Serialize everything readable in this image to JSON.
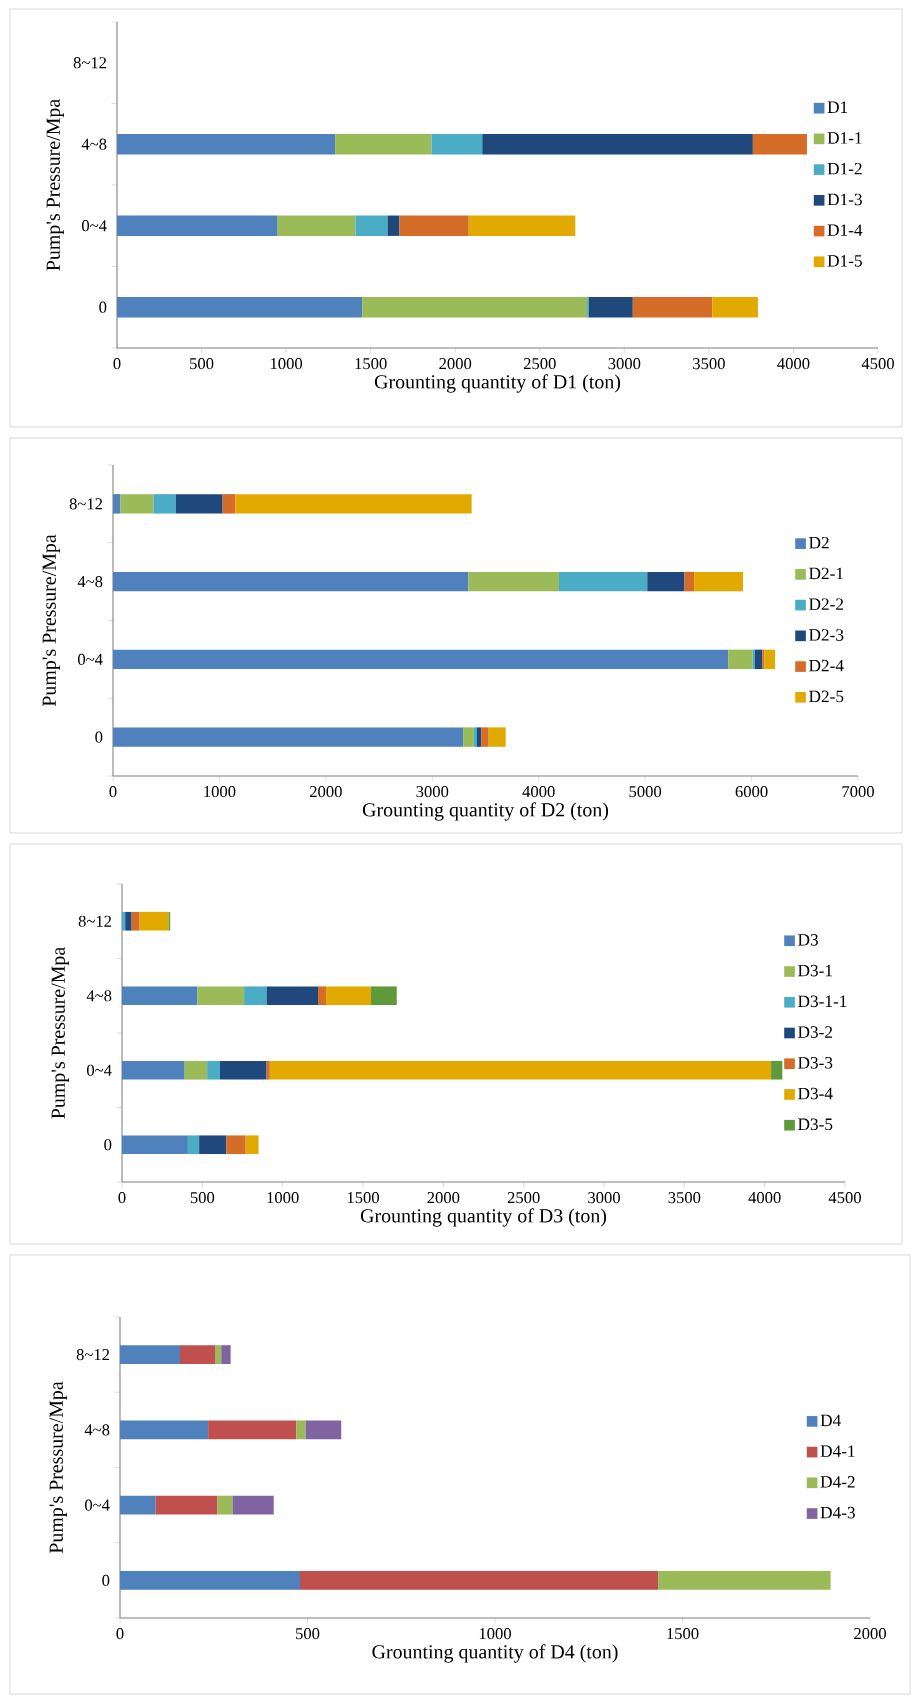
{
  "chart_data": [
    {
      "type": "bar",
      "orientation": "horizontal",
      "stacked": true,
      "xlabel": "Grounting quantity of D1 (ton)",
      "ylabel": "Pump's Pressure/Mpa",
      "categories": [
        "8~12",
        "4~8",
        "0~4",
        "0"
      ],
      "xlim": [
        0,
        4500
      ],
      "xticks": [
        0,
        500,
        1000,
        1500,
        2000,
        2500,
        3000,
        3500,
        4000,
        4500
      ],
      "legend": "right",
      "grid": false,
      "series": [
        {
          "name": "D1",
          "color": "#4f81bd",
          "values": [
            null,
            1290,
            950,
            1450
          ]
        },
        {
          "name": "D1-1",
          "color": "#9bbb59",
          "values": [
            null,
            570,
            460,
            1330
          ]
        },
        {
          "name": "D1-2",
          "color": "#4bacc6",
          "values": [
            null,
            300,
            190,
            10
          ]
        },
        {
          "name": "D1-3",
          "color": "#1f497d",
          "values": [
            null,
            1600,
            70,
            260
          ]
        },
        {
          "name": "D1-4",
          "color": "#d56d28",
          "values": [
            null,
            320,
            410,
            470
          ]
        },
        {
          "name": "D1-5",
          "color": "#e2aa00",
          "values": [
            null,
            null,
            630,
            270
          ]
        }
      ]
    },
    {
      "type": "bar",
      "orientation": "horizontal",
      "stacked": true,
      "xlabel": "Grounting quantity of D2 (ton)",
      "ylabel": "Pump's Pressure/Mpa",
      "categories": [
        "8~12",
        "4~8",
        "0~4",
        "0"
      ],
      "xlim": [
        0,
        7000
      ],
      "xticks": [
        0,
        1000,
        2000,
        3000,
        4000,
        5000,
        6000,
        7000
      ],
      "legend": "right",
      "grid": false,
      "series": [
        {
          "name": "D2",
          "color": "#4f81bd",
          "values": [
            70,
            3340,
            5780,
            3290
          ]
        },
        {
          "name": "D2-1",
          "color": "#9bbb59",
          "values": [
            310,
            850,
            230,
            100
          ]
        },
        {
          "name": "D2-2",
          "color": "#4bacc6",
          "values": [
            210,
            830,
            20,
            30
          ]
        },
        {
          "name": "D2-3",
          "color": "#1f497d",
          "values": [
            440,
            350,
            70,
            40
          ]
        },
        {
          "name": "D2-4",
          "color": "#d56d28",
          "values": [
            120,
            90,
            20,
            70
          ]
        },
        {
          "name": "D2-5",
          "color": "#e2aa00",
          "values": [
            2220,
            460,
            100,
            160
          ]
        }
      ]
    },
    {
      "type": "bar",
      "orientation": "horizontal",
      "stacked": true,
      "xlabel": "Grounting quantity of D3 (ton)",
      "ylabel": "Pump's Pressure/Mpa",
      "categories": [
        "8~12",
        "4~8",
        "0~4",
        "0"
      ],
      "xlim": [
        0,
        4500
      ],
      "xticks": [
        0,
        500,
        1000,
        1500,
        2000,
        2500,
        3000,
        3500,
        4000,
        4500
      ],
      "legend": "right",
      "grid": false,
      "series": [
        {
          "name": "D3",
          "color": "#4f81bd",
          "values": [
            null,
            470,
            390,
            410
          ]
        },
        {
          "name": "D3-1",
          "color": "#9bbb59",
          "values": [
            null,
            290,
            140,
            null
          ]
        },
        {
          "name": "D3-1-1",
          "color": "#4bacc6",
          "values": [
            20,
            140,
            80,
            70
          ]
        },
        {
          "name": "D3-2",
          "color": "#1f497d",
          "values": [
            40,
            320,
            290,
            170
          ]
        },
        {
          "name": "D3-3",
          "color": "#d56d28",
          "values": [
            50,
            50,
            20,
            120
          ]
        },
        {
          "name": "D3-4",
          "color": "#e2aa00",
          "values": [
            180,
            280,
            3120,
            80
          ]
        },
        {
          "name": "D3-5",
          "color": "#5e9a3b",
          "values": [
            10,
            160,
            70,
            null
          ]
        }
      ]
    },
    {
      "type": "bar",
      "orientation": "horizontal",
      "stacked": true,
      "xlabel": "Grounting quantity of D4 (ton)",
      "ylabel": "Pump's Pressure/Mpa",
      "categories": [
        "8~12",
        "4~8",
        "0~4",
        "0"
      ],
      "xlim": [
        0,
        2000
      ],
      "xticks": [
        0,
        500,
        1000,
        1500,
        2000
      ],
      "legend": "right",
      "grid": false,
      "series": [
        {
          "name": "D4",
          "color": "#4f81bd",
          "values": [
            160,
            235,
            95,
            480
          ]
        },
        {
          "name": "D4-1",
          "color": "#c0504d",
          "values": [
            95,
            235,
            165,
            955
          ]
        },
        {
          "name": "D4-2",
          "color": "#9bbb59",
          "values": [
            15,
            25,
            40,
            460
          ]
        },
        {
          "name": "D4-3",
          "color": "#8064a2",
          "values": [
            25,
            95,
            110,
            null
          ]
        }
      ]
    }
  ]
}
